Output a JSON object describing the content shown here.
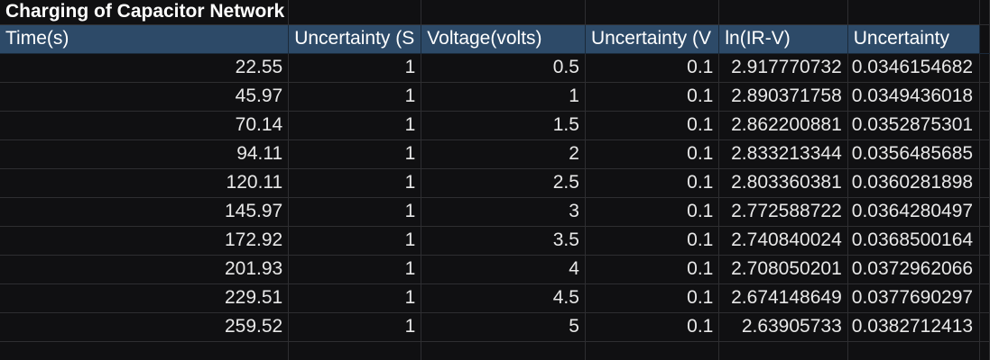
{
  "sheet": {
    "title": "Charging of Capacitor Network",
    "headers": [
      "Time(s)",
      "Uncertainty (S",
      "Voltage(volts)",
      "Uncertainty (V",
      "ln(IR-V)",
      "Uncertainty"
    ],
    "rows": [
      [
        "22.55",
        "1",
        "0.5",
        "0.1",
        "2.917770732",
        "0.0346154682"
      ],
      [
        "45.97",
        "1",
        "1",
        "0.1",
        "2.890371758",
        "0.0349436018"
      ],
      [
        "70.14",
        "1",
        "1.5",
        "0.1",
        "2.862200881",
        "0.0352875301"
      ],
      [
        "94.11",
        "1",
        "2",
        "0.1",
        "2.833213344",
        "0.0356485685"
      ],
      [
        "120.11",
        "1",
        "2.5",
        "0.1",
        "2.803360381",
        "0.0360281898"
      ],
      [
        "145.97",
        "1",
        "3",
        "0.1",
        "2.772588722",
        "0.0364280497"
      ],
      [
        "172.92",
        "1",
        "3.5",
        "0.1",
        "2.740840024",
        "0.0368500164"
      ],
      [
        "201.93",
        "1",
        "4",
        "0.1",
        "2.708050201",
        "0.0372962066"
      ],
      [
        "229.51",
        "1",
        "4.5",
        "0.1",
        "2.674148649",
        "0.0377690297"
      ],
      [
        "259.52",
        "1",
        "5",
        "0.1",
        "2.63905733",
        "0.0382712413"
      ]
    ]
  },
  "colors": {
    "header_bg": "#2d4a68",
    "sheet_bg": "#101012",
    "gridline": "#2e2e31"
  }
}
